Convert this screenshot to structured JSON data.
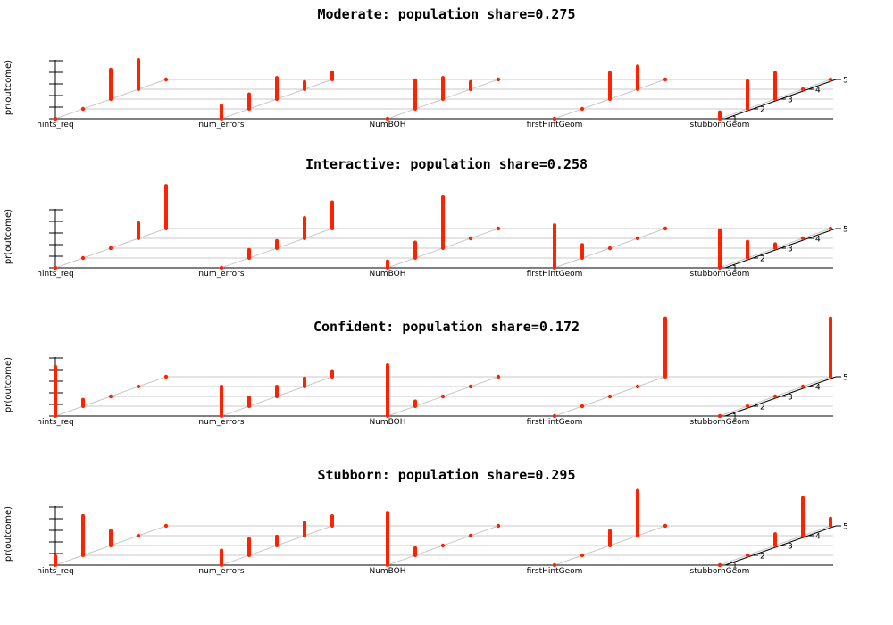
{
  "chart_data": {
    "type": "bar",
    "variant": "3d-stick-plot",
    "y_axis_label": "pr(outcome)",
    "groups": [
      "hints_req",
      "num_errors",
      "NumBOH",
      "firstHintGeom",
      "stubbornGeom"
    ],
    "depth_levels": [
      "1",
      "2",
      "3",
      "4",
      "5"
    ],
    "grid": true,
    "bar_color": "#ff2200",
    "panels": [
      {
        "title": "Moderate: population share=0.275",
        "values": [
          [
            0.0,
            0.02,
            0.36,
            0.36,
            0.0
          ],
          [
            0.16,
            0.18,
            0.26,
            0.09,
            0.09
          ],
          [
            0.0,
            0.35,
            0.26,
            0.09,
            0.0
          ],
          [
            0.0,
            0.0,
            0.32,
            0.28,
            0.0
          ],
          [
            0.08,
            0.34,
            0.32,
            0.0,
            0.0
          ]
        ]
      },
      {
        "title": "Interactive: population share=0.258",
        "values": [
          [
            0.0,
            0.0,
            0.0,
            0.19,
            0.52
          ],
          [
            0.0,
            0.1,
            0.09,
            0.25,
            0.32
          ],
          [
            0.08,
            0.19,
            0.63,
            0.0,
            0.0
          ],
          [
            0.52,
            0.16,
            0.0,
            0.0,
            0.0
          ],
          [
            0.46,
            0.2,
            0.05,
            0.0,
            0.0
          ]
        ]
      },
      {
        "title": "Confident: population share=0.172",
        "values": [
          [
            0.6,
            0.08,
            0.0,
            0.0,
            0.0
          ],
          [
            0.36,
            0.11,
            0.12,
            0.1,
            0.07
          ],
          [
            0.62,
            0.06,
            0.0,
            0.0,
            0.0
          ],
          [
            0.0,
            0.0,
            0.0,
            0.0,
            0.71
          ],
          [
            0.0,
            0.0,
            0.0,
            0.0,
            0.71
          ]
        ]
      },
      {
        "title": "Stubborn: population share=0.295",
        "values": [
          [
            0.11,
            0.48,
            0.18,
            0.0,
            0.0
          ],
          [
            0.18,
            0.2,
            0.11,
            0.16,
            0.12
          ],
          [
            0.64,
            0.09,
            0.0,
            0.0,
            0.0
          ],
          [
            0.0,
            0.0,
            0.18,
            0.55,
            0.0
          ],
          [
            0.0,
            0.0,
            0.14,
            0.46,
            0.09
          ]
        ]
      }
    ]
  }
}
